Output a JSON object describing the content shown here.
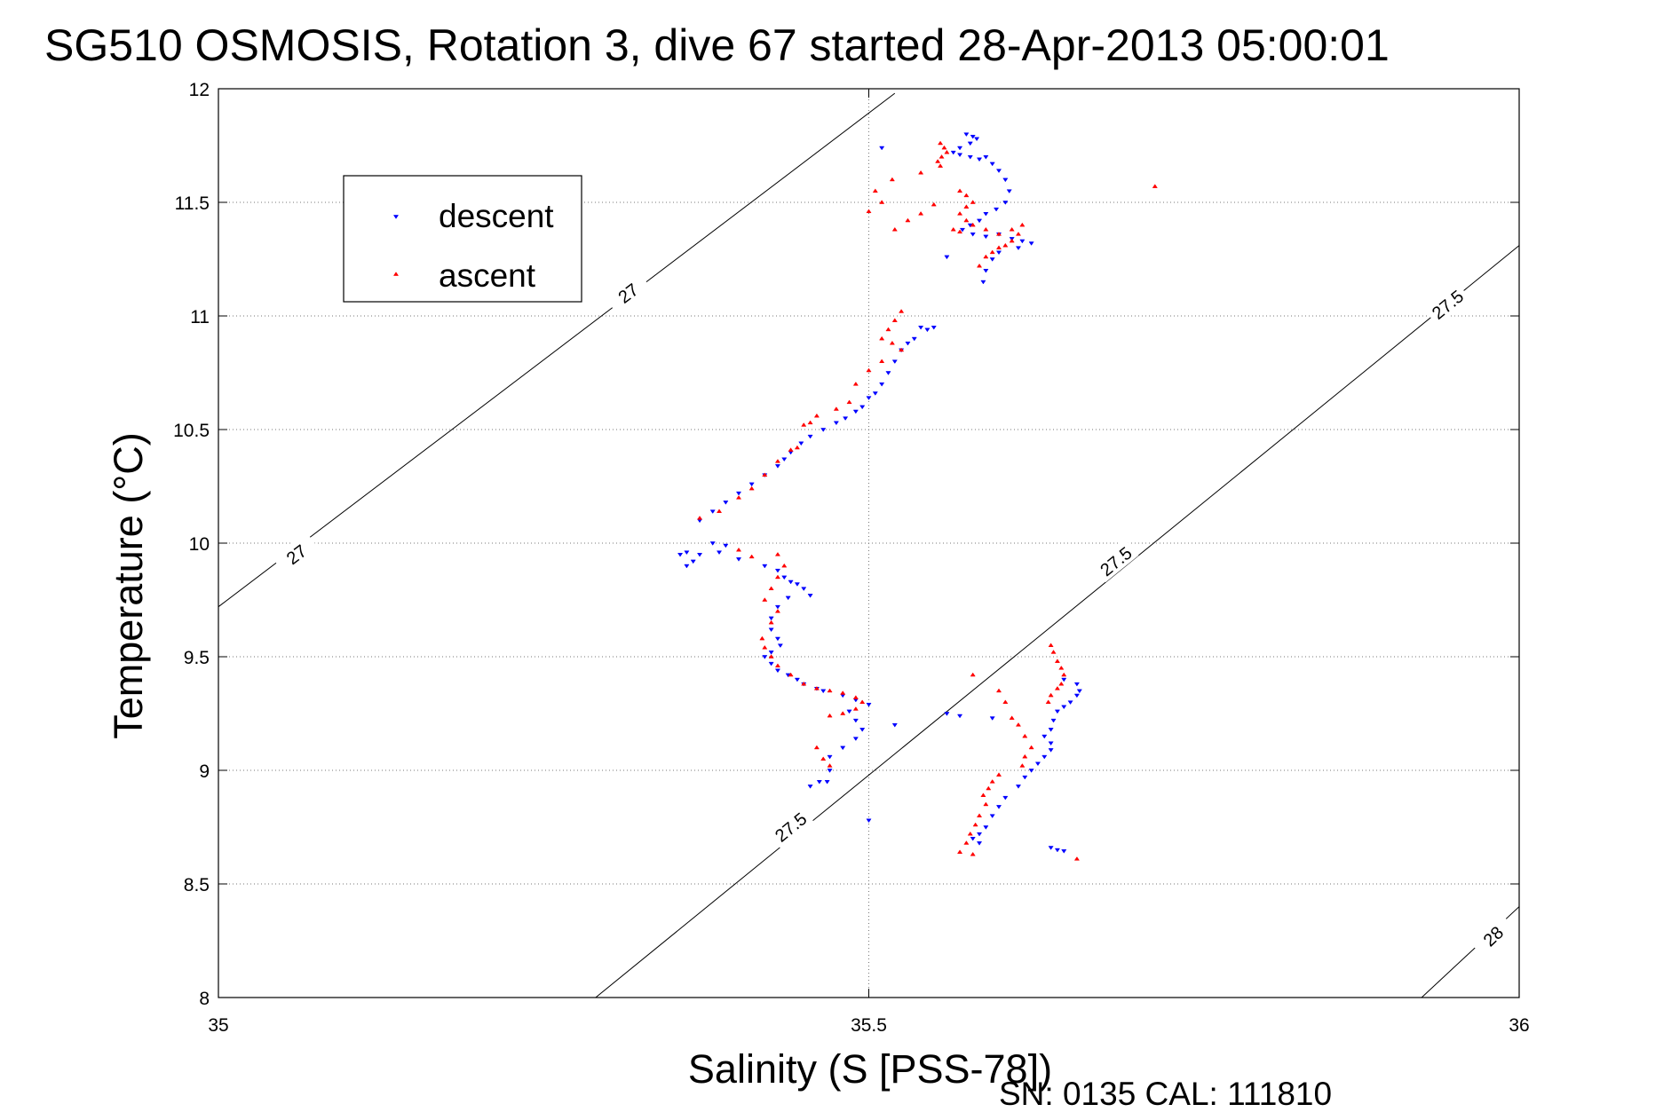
{
  "chart_data": {
    "type": "scatter",
    "title": "SG510 OSMOSIS, Rotation 3, dive 67 started 28-Apr-2013 05:00:01",
    "xlabel": "Salinity (S [PSS-78])",
    "ylabel": "Temperature (°C)",
    "footer": "SN: 0135  CAL: 111810",
    "xlim": [
      35,
      36
    ],
    "ylim": [
      8,
      12
    ],
    "xticks": [
      35,
      35.5,
      36
    ],
    "xtick_labels": [
      "35",
      "35.5",
      "36"
    ],
    "yticks": [
      8,
      8.5,
      9,
      9.5,
      10,
      10.5,
      11,
      11.5,
      12
    ],
    "ytick_labels": [
      "8",
      "8.5",
      "9",
      "9.5",
      "10",
      "10.5",
      "11",
      "11.5",
      "12"
    ],
    "grid": true,
    "legend_position": "top-left",
    "density_contours": [
      {
        "level": "27",
        "points": [
          [
            35,
            9.72
          ],
          [
            35.52,
            11.98
          ]
        ],
        "labels": [
          [
            35.06,
            9.95
          ],
          [
            35.315,
            11.1
          ]
        ]
      },
      {
        "level": "27.5",
        "points": [
          [
            35.29,
            8
          ],
          [
            36,
            11.31
          ]
        ],
        "labels": [
          [
            35.44,
            8.75
          ],
          [
            35.69,
            9.92
          ],
          [
            35.945,
            11.05
          ]
        ]
      },
      {
        "level": "28",
        "points": [
          [
            35.925,
            8
          ],
          [
            36,
            8.4
          ]
        ],
        "labels": [
          [
            35.98,
            8.27
          ]
        ]
      }
    ],
    "series": [
      {
        "name": "descent",
        "color": "#0000ff",
        "marker": "triangle-down",
        "points": [
          [
            35.575,
            11.8
          ],
          [
            35.58,
            11.79
          ],
          [
            35.583,
            11.78
          ],
          [
            35.578,
            11.76
          ],
          [
            35.57,
            11.74
          ],
          [
            35.565,
            11.72
          ],
          [
            35.57,
            11.71
          ],
          [
            35.578,
            11.7
          ],
          [
            35.585,
            11.69
          ],
          [
            35.59,
            11.7
          ],
          [
            35.595,
            11.67
          ],
          [
            35.6,
            11.64
          ],
          [
            35.605,
            11.6
          ],
          [
            35.608,
            11.55
          ],
          [
            35.605,
            11.5
          ],
          [
            35.598,
            11.47
          ],
          [
            35.59,
            11.45
          ],
          [
            35.585,
            11.42
          ],
          [
            35.578,
            11.4
          ],
          [
            35.572,
            11.38
          ],
          [
            35.58,
            11.36
          ],
          [
            35.59,
            11.35
          ],
          [
            35.6,
            11.36
          ],
          [
            35.61,
            11.34
          ],
          [
            35.618,
            11.33
          ],
          [
            35.625,
            11.32
          ],
          [
            35.615,
            11.3
          ],
          [
            35.6,
            11.28
          ],
          [
            35.595,
            11.25
          ],
          [
            35.59,
            11.2
          ],
          [
            35.588,
            11.15
          ],
          [
            35.51,
            11.74
          ],
          [
            35.56,
            11.26
          ],
          [
            35.54,
            10.95
          ],
          [
            35.545,
            10.94
          ],
          [
            35.55,
            10.95
          ],
          [
            35.535,
            10.9
          ],
          [
            35.53,
            10.88
          ],
          [
            35.525,
            10.85
          ],
          [
            35.52,
            10.8
          ],
          [
            35.515,
            10.75
          ],
          [
            35.51,
            10.7
          ],
          [
            35.505,
            10.66
          ],
          [
            35.5,
            10.64
          ],
          [
            35.495,
            10.6
          ],
          [
            35.49,
            10.58
          ],
          [
            35.482,
            10.55
          ],
          [
            35.475,
            10.53
          ],
          [
            35.465,
            10.5
          ],
          [
            35.455,
            10.47
          ],
          [
            35.448,
            10.44
          ],
          [
            35.44,
            10.4
          ],
          [
            35.435,
            10.37
          ],
          [
            35.43,
            10.34
          ],
          [
            35.42,
            10.3
          ],
          [
            35.41,
            10.26
          ],
          [
            35.4,
            10.22
          ],
          [
            35.39,
            10.18
          ],
          [
            35.38,
            10.14
          ],
          [
            35.37,
            10.1
          ],
          [
            35.38,
            10.0
          ],
          [
            35.39,
            9.99
          ],
          [
            35.385,
            9.96
          ],
          [
            35.37,
            9.95
          ],
          [
            35.36,
            9.96
          ],
          [
            35.355,
            9.95
          ],
          [
            35.365,
            9.92
          ],
          [
            35.36,
            9.9
          ],
          [
            35.4,
            9.93
          ],
          [
            35.42,
            9.9
          ],
          [
            35.43,
            9.88
          ],
          [
            35.435,
            9.85
          ],
          [
            35.44,
            9.83
          ],
          [
            35.445,
            9.82
          ],
          [
            35.45,
            9.8
          ],
          [
            35.455,
            9.77
          ],
          [
            35.438,
            9.76
          ],
          [
            35.43,
            9.72
          ],
          [
            35.425,
            9.67
          ],
          [
            35.425,
            9.62
          ],
          [
            35.43,
            9.58
          ],
          [
            35.432,
            9.55
          ],
          [
            35.425,
            9.52
          ],
          [
            35.42,
            9.5
          ],
          [
            35.425,
            9.47
          ],
          [
            35.43,
            9.44
          ],
          [
            35.438,
            9.42
          ],
          [
            35.445,
            9.4
          ],
          [
            35.45,
            9.38
          ],
          [
            35.46,
            9.36
          ],
          [
            35.465,
            9.35
          ],
          [
            35.48,
            9.33
          ],
          [
            35.49,
            9.31
          ],
          [
            35.5,
            9.29
          ],
          [
            35.485,
            9.26
          ],
          [
            35.49,
            9.22
          ],
          [
            35.495,
            9.18
          ],
          [
            35.49,
            9.14
          ],
          [
            35.48,
            9.1
          ],
          [
            35.47,
            9.06
          ],
          [
            35.47,
            9.0
          ],
          [
            35.468,
            8.95
          ],
          [
            35.462,
            8.95
          ],
          [
            35.455,
            8.93
          ],
          [
            35.5,
            8.78
          ],
          [
            35.52,
            9.2
          ],
          [
            35.56,
            9.25
          ],
          [
            35.57,
            9.24
          ],
          [
            35.595,
            9.23
          ],
          [
            35.65,
            9.4
          ],
          [
            35.66,
            9.38
          ],
          [
            35.662,
            9.35
          ],
          [
            35.66,
            9.33
          ],
          [
            35.655,
            9.3
          ],
          [
            35.65,
            9.28
          ],
          [
            35.645,
            9.26
          ],
          [
            35.642,
            9.22
          ],
          [
            35.64,
            9.18
          ],
          [
            35.635,
            9.15
          ],
          [
            35.64,
            9.12
          ],
          [
            35.64,
            9.09
          ],
          [
            35.635,
            9.06
          ],
          [
            35.63,
            9.03
          ],
          [
            35.625,
            9.0
          ],
          [
            35.62,
            8.97
          ],
          [
            35.615,
            8.93
          ],
          [
            35.605,
            8.88
          ],
          [
            35.6,
            8.84
          ],
          [
            35.595,
            8.8
          ],
          [
            35.59,
            8.75
          ],
          [
            35.585,
            8.72
          ],
          [
            35.58,
            8.7
          ],
          [
            35.64,
            8.66
          ],
          [
            35.645,
            8.65
          ],
          [
            35.65,
            8.645
          ],
          [
            35.585,
            8.68
          ]
        ]
      },
      {
        "name": "ascent",
        "color": "#ff0000",
        "marker": "triangle-up",
        "points": [
          [
            35.555,
            11.76
          ],
          [
            35.558,
            11.74
          ],
          [
            35.56,
            11.72
          ],
          [
            35.556,
            11.7
          ],
          [
            35.553,
            11.68
          ],
          [
            35.555,
            11.66
          ],
          [
            35.57,
            11.55
          ],
          [
            35.575,
            11.53
          ],
          [
            35.58,
            11.5
          ],
          [
            35.575,
            11.48
          ],
          [
            35.57,
            11.45
          ],
          [
            35.575,
            11.42
          ],
          [
            35.58,
            11.4
          ],
          [
            35.59,
            11.38
          ],
          [
            35.6,
            11.36
          ],
          [
            35.61,
            11.38
          ],
          [
            35.618,
            11.4
          ],
          [
            35.615,
            11.36
          ],
          [
            35.61,
            11.33
          ],
          [
            35.605,
            11.31
          ],
          [
            35.6,
            11.3
          ],
          [
            35.595,
            11.28
          ],
          [
            35.59,
            11.26
          ],
          [
            35.585,
            11.22
          ],
          [
            35.57,
            11.37
          ],
          [
            35.565,
            11.38
          ],
          [
            35.55,
            11.49
          ],
          [
            35.54,
            11.45
          ],
          [
            35.53,
            11.42
          ],
          [
            35.52,
            11.38
          ],
          [
            35.51,
            11.5
          ],
          [
            35.5,
            11.46
          ],
          [
            35.505,
            11.55
          ],
          [
            35.518,
            11.6
          ],
          [
            35.54,
            11.63
          ],
          [
            35.525,
            11.02
          ],
          [
            35.52,
            10.98
          ],
          [
            35.515,
            10.94
          ],
          [
            35.51,
            10.9
          ],
          [
            35.518,
            10.88
          ],
          [
            35.525,
            10.85
          ],
          [
            35.51,
            10.8
          ],
          [
            35.5,
            10.76
          ],
          [
            35.49,
            10.7
          ],
          [
            35.485,
            10.62
          ],
          [
            35.475,
            10.59
          ],
          [
            35.46,
            10.56
          ],
          [
            35.455,
            10.53
          ],
          [
            35.45,
            10.52
          ],
          [
            35.445,
            10.42
          ],
          [
            35.44,
            10.41
          ],
          [
            35.43,
            10.36
          ],
          [
            35.42,
            10.3
          ],
          [
            35.41,
            10.24
          ],
          [
            35.4,
            10.2
          ],
          [
            35.385,
            10.14
          ],
          [
            35.37,
            10.11
          ],
          [
            35.4,
            9.97
          ],
          [
            35.41,
            9.94
          ],
          [
            35.43,
            9.95
          ],
          [
            35.435,
            9.9
          ],
          [
            35.43,
            9.85
          ],
          [
            35.425,
            9.8
          ],
          [
            35.42,
            9.75
          ],
          [
            35.43,
            9.7
          ],
          [
            35.425,
            9.65
          ],
          [
            35.418,
            9.58
          ],
          [
            35.42,
            9.54
          ],
          [
            35.425,
            9.5
          ],
          [
            35.43,
            9.46
          ],
          [
            35.44,
            9.42
          ],
          [
            35.45,
            9.38
          ],
          [
            35.46,
            9.36
          ],
          [
            35.47,
            9.35
          ],
          [
            35.48,
            9.34
          ],
          [
            35.49,
            9.32
          ],
          [
            35.495,
            9.3
          ],
          [
            35.49,
            9.27
          ],
          [
            35.48,
            9.25
          ],
          [
            35.47,
            9.24
          ],
          [
            35.46,
            9.1
          ],
          [
            35.465,
            9.05
          ],
          [
            35.47,
            9.02
          ],
          [
            35.58,
            9.42
          ],
          [
            35.6,
            9.35
          ],
          [
            35.605,
            9.3
          ],
          [
            35.61,
            9.23
          ],
          [
            35.615,
            9.2
          ],
          [
            35.62,
            9.15
          ],
          [
            35.625,
            9.1
          ],
          [
            35.62,
            9.06
          ],
          [
            35.618,
            9.02
          ],
          [
            35.6,
            8.98
          ],
          [
            35.595,
            8.95
          ],
          [
            35.592,
            8.92
          ],
          [
            35.588,
            8.89
          ],
          [
            35.59,
            8.85
          ],
          [
            35.585,
            8.8
          ],
          [
            35.582,
            8.76
          ],
          [
            35.578,
            8.72
          ],
          [
            35.575,
            8.68
          ],
          [
            35.57,
            8.64
          ],
          [
            35.58,
            8.63
          ],
          [
            35.64,
            9.55
          ],
          [
            35.642,
            9.52
          ],
          [
            35.645,
            9.48
          ],
          [
            35.648,
            9.45
          ],
          [
            35.65,
            9.42
          ],
          [
            35.648,
            9.38
          ],
          [
            35.645,
            9.36
          ],
          [
            35.64,
            9.33
          ],
          [
            35.638,
            9.3
          ],
          [
            35.66,
            8.61
          ],
          [
            35.72,
            11.57
          ]
        ]
      }
    ]
  }
}
